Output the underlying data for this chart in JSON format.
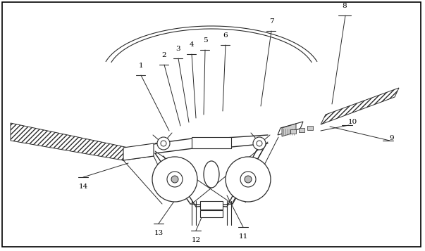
{
  "bg_color": "#ffffff",
  "line_color": "#2a2a2a",
  "figsize": [
    6.03,
    3.57
  ],
  "dpi": 100,
  "xlim": [
    0,
    603
  ],
  "ylim": [
    357,
    0
  ],
  "border": [
    3,
    3,
    597,
    351
  ]
}
